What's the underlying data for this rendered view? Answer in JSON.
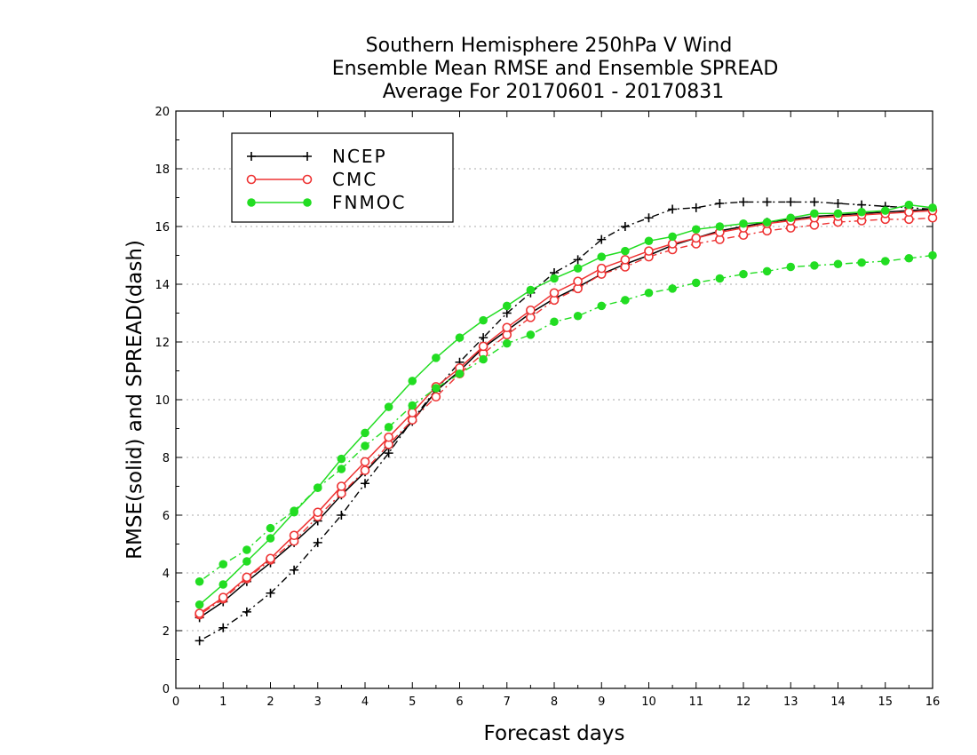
{
  "chart_data": {
    "type": "line",
    "title": [
      "Southern Hemisphere 250hPa V Wind",
      "Ensemble Mean RMSE and Ensemble SPREAD",
      "Average For 20170601 - 20170831"
    ],
    "xlabel": "Forecast days",
    "ylabel": "RMSE(solid) and SPREAD(dash)",
    "xlim": [
      0,
      16
    ],
    "ylim": [
      0,
      20
    ],
    "xticks": [
      "0",
      "1",
      "2",
      "3",
      "4",
      "5",
      "6",
      "7",
      "8",
      "9",
      "10",
      "11",
      "12",
      "13",
      "14",
      "15",
      "16"
    ],
    "yticks": [
      "0",
      "2",
      "4",
      "6",
      "8",
      "10",
      "12",
      "14",
      "16",
      "18",
      "20"
    ],
    "grid": true,
    "legend_position": "top-left",
    "x": [
      0.5,
      1,
      1.5,
      2,
      2.5,
      3,
      3.5,
      4,
      4.5,
      5,
      5.5,
      6,
      6.5,
      7,
      7.5,
      8,
      8.5,
      9,
      9.5,
      10,
      10.5,
      11,
      11.5,
      12,
      12.5,
      13,
      13.5,
      14,
      14.5,
      15,
      15.5,
      16
    ],
    "series": [
      {
        "name": "NCEP",
        "color": "#000000",
        "marker": "plus",
        "rmse": [
          2.45,
          3.0,
          3.7,
          4.35,
          5.05,
          5.8,
          6.7,
          7.5,
          8.35,
          9.25,
          10.3,
          11.0,
          11.8,
          12.4,
          13.0,
          13.5,
          13.9,
          14.35,
          14.7,
          15.0,
          15.35,
          15.6,
          15.85,
          16.0,
          16.15,
          16.25,
          16.35,
          16.4,
          16.45,
          16.5,
          16.55,
          16.6
        ],
        "spread": [
          1.65,
          2.1,
          2.65,
          3.3,
          4.1,
          5.05,
          6.0,
          7.1,
          8.15,
          9.3,
          10.35,
          11.3,
          12.15,
          13.0,
          13.7,
          14.4,
          14.85,
          15.55,
          16.0,
          16.3,
          16.6,
          16.65,
          16.8,
          16.85,
          16.85,
          16.85,
          16.85,
          16.8,
          16.75,
          16.7,
          16.65,
          16.6
        ]
      },
      {
        "name": "CMC",
        "color": "#ee3333",
        "marker": "open-circle",
        "rmse": [
          2.6,
          3.15,
          3.85,
          4.5,
          5.3,
          6.1,
          7.0,
          7.85,
          8.7,
          9.55,
          10.45,
          11.1,
          11.85,
          12.5,
          13.1,
          13.7,
          14.1,
          14.55,
          14.85,
          15.15,
          15.4,
          15.6,
          15.8,
          15.95,
          16.1,
          16.2,
          16.3,
          16.35,
          16.4,
          16.45,
          16.5,
          16.55
        ],
        "spread": [
          2.55,
          3.1,
          3.8,
          4.45,
          5.1,
          5.95,
          6.75,
          7.55,
          8.45,
          9.3,
          10.1,
          10.9,
          11.6,
          12.25,
          12.85,
          13.45,
          13.85,
          14.35,
          14.6,
          14.95,
          15.2,
          15.4,
          15.55,
          15.7,
          15.85,
          15.95,
          16.05,
          16.15,
          16.2,
          16.25,
          16.25,
          16.3
        ]
      },
      {
        "name": "FNMOC",
        "color": "#22dd22",
        "marker": "filled-circle",
        "rmse": [
          2.9,
          3.6,
          4.4,
          5.2,
          6.1,
          6.95,
          7.95,
          8.85,
          9.75,
          10.65,
          11.45,
          12.15,
          12.75,
          13.25,
          13.8,
          14.2,
          14.55,
          14.95,
          15.15,
          15.5,
          15.65,
          15.9,
          16.0,
          16.1,
          16.15,
          16.3,
          16.45,
          16.45,
          16.5,
          16.55,
          16.75,
          16.65
        ],
        "spread": [
          3.7,
          4.3,
          4.8,
          5.55,
          6.15,
          6.95,
          7.6,
          8.4,
          9.05,
          9.8,
          10.4,
          10.9,
          11.4,
          11.95,
          12.25,
          12.7,
          12.9,
          13.25,
          13.45,
          13.7,
          13.85,
          14.05,
          14.2,
          14.35,
          14.45,
          14.6,
          14.65,
          14.7,
          14.75,
          14.8,
          14.9,
          15.0
        ]
      }
    ]
  }
}
